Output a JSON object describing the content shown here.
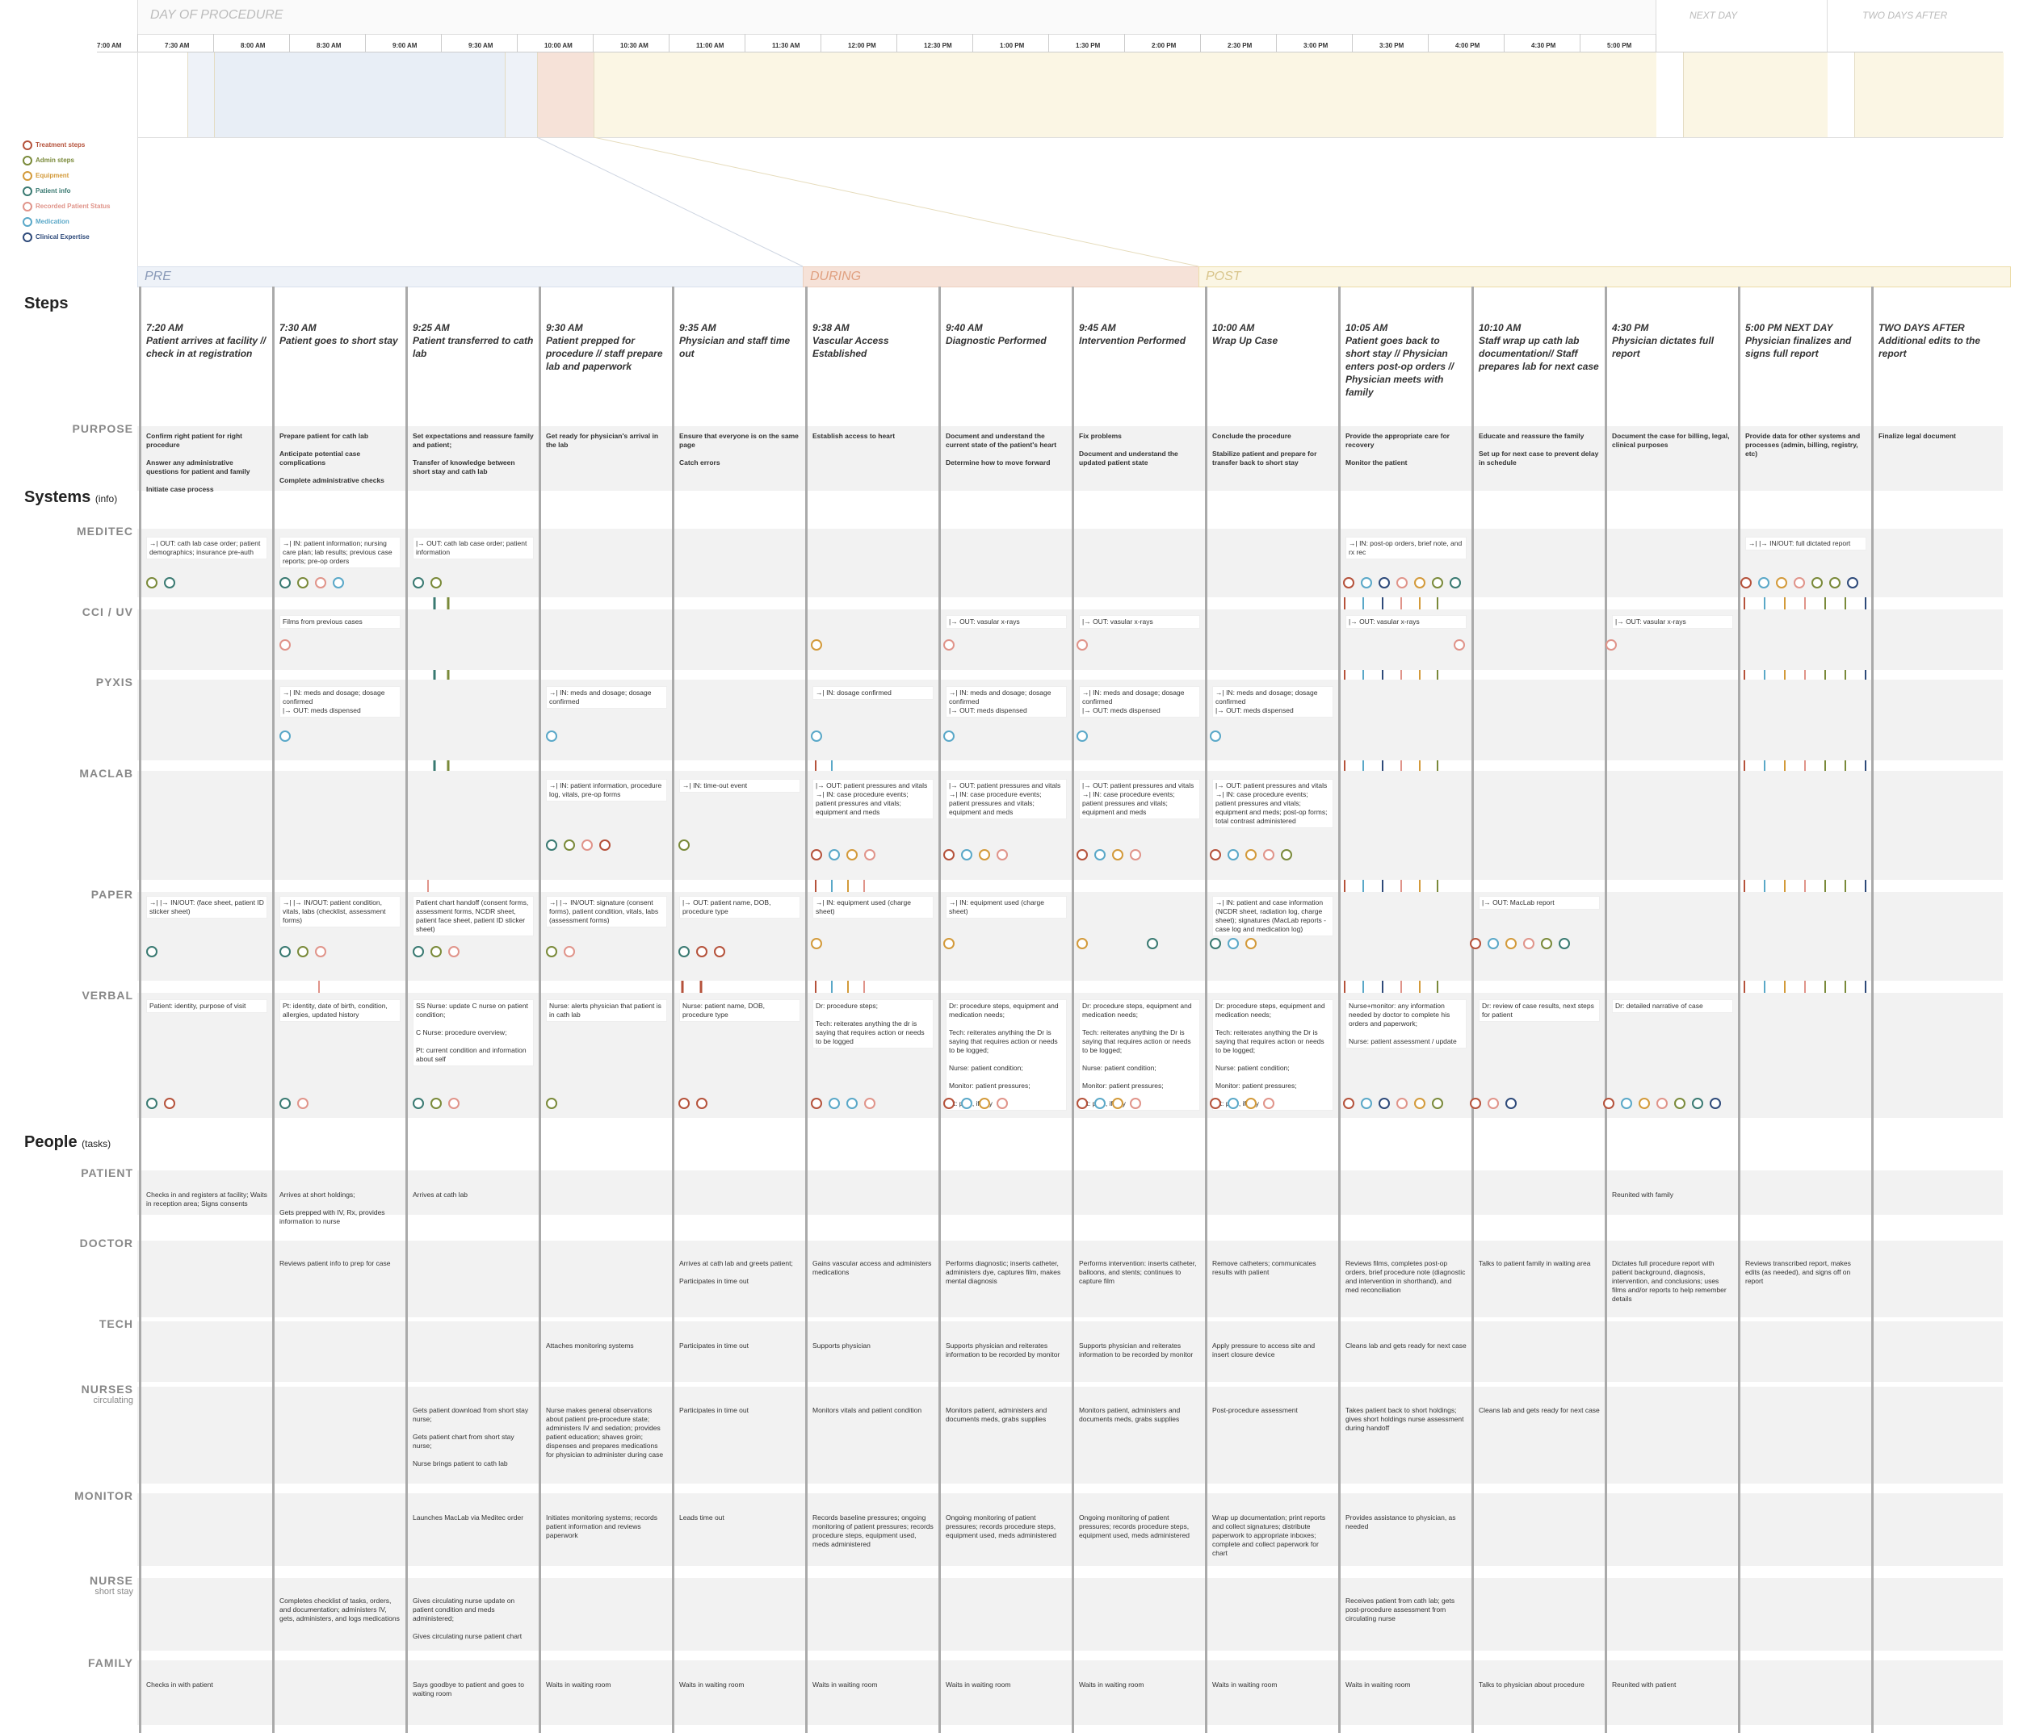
{
  "header": {
    "day_of_procedure": "DAY OF PROCEDURE",
    "next_day": "NEXT DAY",
    "two_days_after": "TWO DAYS AFTER",
    "times": [
      "7:00 AM",
      "7:30 AM",
      "8:00 AM",
      "8:30 AM",
      "9:00 AM",
      "9:30 AM",
      "10:00 AM",
      "10:30 AM",
      "11:00 AM",
      "11:30 AM",
      "12:00 PM",
      "12:30 PM",
      "1:00 PM",
      "1:30 PM",
      "2:00 PM",
      "2:30 PM",
      "3:00 PM",
      "3:30 PM",
      "4:00 PM",
      "4:30 PM",
      "5:00 PM"
    ]
  },
  "legend": [
    {
      "label": "Treatment steps",
      "color": "#b5523b"
    },
    {
      "label": "Admin steps",
      "color": "#7a8a3a"
    },
    {
      "label": "Equipment",
      "color": "#d39a3a"
    },
    {
      "label": "Patient info",
      "color": "#3a7a72"
    },
    {
      "label": "Recorded Patient Status",
      "color": "#e0948a"
    },
    {
      "label": "Medication",
      "color": "#5aa8c8"
    },
    {
      "label": "Clinical Expertise",
      "color": "#2e4a7a"
    }
  ],
  "phases": {
    "pre": "PRE",
    "during": "DURING",
    "post": "POST"
  },
  "sections": {
    "steps": "Steps",
    "systems": "Systems",
    "systems_note": "(info)",
    "people": "People",
    "people_note": "(tasks)"
  },
  "row_labels": {
    "purpose": "PURPOSE",
    "meditec": "MEDITEC",
    "cci": "CCI / UV",
    "pyxis": "PYXIS",
    "maclab": "MACLAB",
    "paper": "PAPER",
    "verbal": "VERBAL",
    "patient": "PATIENT",
    "doctor": "DOCTOR",
    "tech": "TECH",
    "nurses": "NURSES",
    "nurses_sub": "circulating",
    "monitor": "MONITOR",
    "nurse": "NURSE",
    "nurse_sub": "short stay",
    "family": "FAMILY"
  },
  "columns": [
    {
      "time": "7:20 AM",
      "title": "Patient arrives at facility // check in at registration",
      "purpose": "Confirm right patient for right procedure\n\nAnswer any administrative questions for patient and family\n\nInitiate case process",
      "meditec": "→| OUT: cath lab case order; patient demographics; insurance pre-auth",
      "cci": "",
      "pyxis": "",
      "maclab": "",
      "paper": "→| |→ IN/OUT: (face sheet, patient ID sticker sheet)",
      "verbal": "Patient: identity, purpose of visit",
      "patient": "Checks in and registers at facility; Waits in reception area; Signs consents",
      "doctor": "",
      "tech": "",
      "nurses": "",
      "monitor": "",
      "nurse": "",
      "family": "Checks in with patient"
    },
    {
      "time": "7:30 AM",
      "title": "Patient goes to short stay",
      "purpose": "Prepare patient for cath lab\n\nAnticipate potential case complications\n\nComplete administrative checks",
      "meditec": "→| IN: patient information; nursing care plan; lab results; previous case reports; pre-op orders",
      "cci": "Films from previous cases",
      "pyxis": "→| IN: meds and dosage; dosage confirmed\n|→ OUT: meds dispensed",
      "maclab": "",
      "paper": "→| |→ IN/OUT: patient condition, vitals, labs (checklist, assessment forms)",
      "verbal": "Pt: identity, date of birth, condition, allergies, updated history",
      "patient": "Arrives at short holdings;\n\nGets prepped with IV, Rx, provides information to nurse",
      "doctor": "Reviews patient info to prep for case",
      "tech": "",
      "nurses": "",
      "monitor": "",
      "nurse": "Completes checklist of tasks, orders, and documentation; administers IV, gets, administers, and logs medications",
      "family": ""
    },
    {
      "time": "9:25 AM",
      "title": "Patient transferred to cath lab",
      "purpose": "Set expectations and reassure family and patient;\n\nTransfer of knowledge between short stay and cath lab",
      "meditec": "|→ OUT: cath lab case order; patient information",
      "cci": "",
      "pyxis": "",
      "maclab": "",
      "paper": "Patient chart handoff (consent forms, assessment forms, NCDR sheet, patient face sheet, patient ID sticker sheet)",
      "verbal": "SS Nurse: update C nurse on patient condition;\n\nC Nurse: procedure overview;\n\nPt: current condition and information about self",
      "patient": "Arrives at cath lab",
      "doctor": "",
      "tech": "",
      "nurses": "Gets patient download from short stay nurse;\n\nGets patient chart from short stay nurse;\n\nNurse brings patient to cath lab",
      "monitor": "Launches MacLab via Meditec order",
      "nurse": "Gives circulating nurse update on patient condition and meds administered;\n\nGives circulating nurse patient chart",
      "family": "Says goodbye to patient and goes to waiting room"
    },
    {
      "time": "9:30 AM",
      "title": "Patient prepped for procedure // staff prepare lab and paperwork",
      "purpose": "Get ready for physician's arrival in the lab",
      "meditec": "",
      "cci": "",
      "pyxis": "→| IN: meds and dosage; dosage confirmed",
      "maclab": "→| IN: patient information, procedure log, vitals, pre-op forms",
      "paper": "→| |→ IN/OUT: signature (consent forms), patient condition, vitals, labs (assessment forms)",
      "verbal": "Nurse: alerts physician that patient is in cath lab",
      "patient": "",
      "doctor": "",
      "tech": "Attaches monitoring systems",
      "nurses": "Nurse makes general observations about patient pre-procedure state; administers IV and sedation; provides patient education; shaves groin; dispenses and prepares medications for physician to administer during case",
      "monitor": "Initiates monitoring systems; records patient information and reviews paperwork",
      "nurse": "",
      "family": "Waits in waiting room"
    },
    {
      "time": "9:35 AM",
      "title": "Physician and staff time out",
      "purpose": "Ensure that everyone is on the same page\n\nCatch errors",
      "meditec": "",
      "cci": "",
      "pyxis": "",
      "maclab": "→| IN: time-out event",
      "paper": "|→ OUT: patient name, DOB, procedure type",
      "verbal": "Nurse: patient name, DOB, procedure type",
      "patient": "",
      "doctor": "Arrives at cath lab and greets patient;\n\nParticipates in time out",
      "tech": "Participates in time out",
      "nurses": "Participates in time out",
      "monitor": "Leads time out",
      "nurse": "",
      "family": "Waits in waiting room"
    },
    {
      "time": "9:38 AM",
      "title": "Vascular Access Established",
      "purpose": "Establish access to heart",
      "meditec": "",
      "cci": "",
      "pyxis": "→| IN: dosage confirmed",
      "maclab": "|→ OUT: patient pressures and vitals\n→| IN: case procedure events; patient pressures and vitals; equipment and meds",
      "paper": "→| IN: equipment used (charge sheet)",
      "verbal": "Dr: procedure steps;\n\nTech: reiterates anything the dr is saying that requires action or needs to be logged",
      "patient": "",
      "doctor": "Gains vascular access and administers medications",
      "tech": "Supports physician",
      "nurses": "Monitors vitals and patient condition",
      "monitor": "Records baseline pressures; ongoing monitoring of patient pressures; records procedure steps, equipment used, meds administered",
      "nurse": "",
      "family": "Waits in waiting room"
    },
    {
      "time": "9:40 AM",
      "title": "Diagnostic Performed",
      "purpose": "Document and understand the current state of the patient's heart\n\nDetermine how to move forward",
      "meditec": "",
      "cci": "|→ OUT: vasular x-rays",
      "pyxis": "→| IN: meds and dosage; dosage confirmed\n|→ OUT: meds dispensed",
      "maclab": "|→ OUT: patient pressures and vitals\n→| IN: case procedure events; patient pressures and vitals; equipment and meds",
      "paper": "→| IN: equipment used (charge sheet)",
      "verbal": "Dr: procedure steps, equipment and medication needs;\n\nTech: reiterates anything the Dr is saying that requires action or needs to be logged;\n\nNurse: patient condition;\n\nMonitor: patient pressures;\n\nPt: pain, if any",
      "patient": "",
      "doctor": "Performs diagnostic; inserts catheter, administers dye, captures film, makes mental diagnosis",
      "tech": "Supports physician and reiterates information to be recorded by monitor",
      "nurses": "Monitors patient, administers and documents meds, grabs supplies",
      "monitor": "Ongoing monitoring of patient pressures; records procedure steps, equipment used, meds administered",
      "nurse": "",
      "family": "Waits in waiting room"
    },
    {
      "time": "9:45 AM",
      "title": "Intervention Performed",
      "purpose": "Fix problems\n\nDocument and understand the updated patient state",
      "meditec": "",
      "cci": "|→ OUT: vasular x-rays",
      "pyxis": "→| IN: meds and dosage; dosage confirmed\n|→ OUT: meds dispensed",
      "maclab": "|→ OUT: patient pressures and vitals\n→| IN: case procedure events; patient pressures and vitals; equipment and meds",
      "paper": "",
      "verbal": "Dr: procedure steps, equipment and medication needs;\n\nTech: reiterates anything the Dr is saying that requires action or needs to be logged;\n\nNurse: patient condition;\n\nMonitor: patient pressures;\n\nPt: pain, if any",
      "patient": "",
      "doctor": "Performs intervention: inserts catheter, balloons, and stents; continues to capture film",
      "tech": "Supports physician and reiterates information to be recorded by monitor",
      "nurses": "Monitors patient, administers and documents meds, grabs supplies",
      "monitor": "Ongoing monitoring of patient pressures; records procedure steps, equipment used, meds administered",
      "nurse": "",
      "family": "Waits in waiting room"
    },
    {
      "time": "10:00 AM",
      "title": "Wrap Up Case",
      "purpose": "Conclude the procedure\n\nStabilize patient and prepare for transfer back to short stay",
      "meditec": "",
      "cci": "",
      "pyxis": "→| IN: meds and dosage; dosage confirmed\n|→ OUT: meds dispensed",
      "maclab": "|→ OUT: patient pressures and vitals\n→| IN: case procedure events; patient pressures and vitals; equipment and meds; post-op forms; total contrast administered",
      "paper": "→| IN: patient and case information (NCDR sheet, radiation log, charge sheet); signatures (MacLab reports - case log and medication log)",
      "verbal": "Dr: procedure steps, equipment and medication needs;\n\nTech: reiterates anything the Dr is saying that requires action or needs to be logged;\n\nNurse: patient condition;\n\nMonitor: patient pressures;\n\nPt: pain, if any",
      "patient": "",
      "doctor": "Remove catheters; communicates results with patient",
      "tech": "Apply pressure to access site and insert closure device",
      "nurses": "Post-procedure assessment",
      "monitor": "Wrap up documentation; print reports and collect signatures; distribute paperwork to appropriate inboxes; complete and collect paperwork for chart",
      "nurse": "",
      "family": "Waits in waiting room"
    },
    {
      "time": "10:05 AM",
      "title": "Patient goes back to short stay // Physician enters post-op orders // Physician meets with family",
      "purpose": "Provide the appropriate care for recovery\n\nMonitor the patient",
      "meditec": "→| IN: post-op orders, brief note, and rx rec",
      "cci": "|→ OUT: vasular x-rays",
      "pyxis": "",
      "maclab": "",
      "paper": "",
      "verbal": "Nurse+monitor: any information needed by doctor to complete his orders and paperwork;\n\nNurse: patient assessment / update",
      "patient": "",
      "doctor": "Reviews films, completes post-op orders, brief procedure note (diagnostic and intervention in shorthand), and med reconciliation",
      "tech": "Cleans lab and gets ready for next case",
      "nurses": "Takes patient back to short holdings; gives short holdings nurse assessment during handoff",
      "monitor": "Provides assistance to physician, as needed",
      "nurse": "Receives patient from cath lab; gets post-procedure assessment from circulating nurse",
      "family": "Waits in waiting room"
    },
    {
      "time": "10:10 AM",
      "title": "Staff wrap up cath lab documentation// Staff prepares lab for next case",
      "purpose": "Educate and reassure the family\n\nSet up for next case to prevent delay in schedule",
      "meditec": "",
      "cci": "",
      "pyxis": "",
      "maclab": "",
      "paper": "|→ OUT: MacLab report",
      "verbal": "Dr: review of case results, next steps for patient",
      "patient": "",
      "doctor": "Talks to patient family in waiting area",
      "tech": "",
      "nurses": "Cleans lab and gets ready for next case",
      "monitor": "",
      "nurse": "",
      "family": "Talks to physician about procedure"
    },
    {
      "time": "4:30 PM",
      "title": "Physician dictates full report",
      "purpose": "Document the case for billing, legal, clinical purposes",
      "meditec": "",
      "cci": "|→ OUT: vasular x-rays",
      "pyxis": "",
      "maclab": "",
      "paper": "",
      "verbal": "Dr: detailed narrative of case",
      "patient": "Reunited with family",
      "doctor": "Dictates full procedure report with patient background, diagnosis, intervention, and conclusions; uses films and/or reports to help remember details",
      "tech": "",
      "nurses": "",
      "monitor": "",
      "nurse": "",
      "family": "Reunited with patient"
    },
    {
      "time": "5:00 PM NEXT DAY",
      "title": "Physician finalizes and signs full report",
      "purpose": "Provide data for other systems and processes (admin, billing, registry, etc)",
      "meditec": "→| |→ IN/OUT: full dictated report",
      "cci": "",
      "pyxis": "",
      "maclab": "",
      "paper": "",
      "verbal": "",
      "patient": "",
      "doctor": "Reviews transcribed report, makes edits (as needed), and signs off on report",
      "tech": "",
      "nurses": "",
      "monitor": "",
      "nurse": "",
      "family": ""
    },
    {
      "time": "TWO DAYS AFTER",
      "title": "Additional edits to the report",
      "purpose": "Finalize legal document",
      "meditec": "",
      "cci": "",
      "pyxis": "",
      "maclab": "",
      "paper": "",
      "verbal": "",
      "patient": "",
      "doctor": "",
      "tech": "",
      "nurses": "",
      "monitor": "",
      "nurse": "",
      "family": ""
    }
  ]
}
